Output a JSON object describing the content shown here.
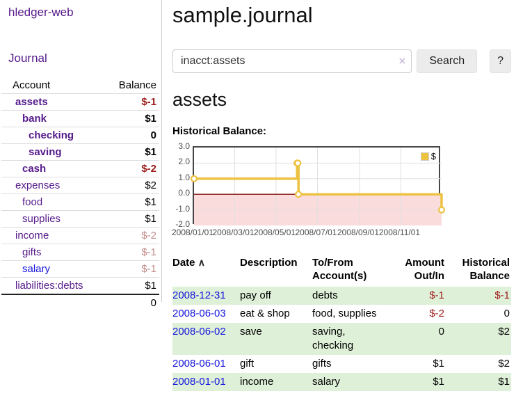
{
  "app": {
    "title": "hledger-web",
    "nav_journal": "Journal"
  },
  "sidebar": {
    "headers": {
      "account": "Account",
      "balance": "Balance"
    },
    "accounts": [
      {
        "name": "assets",
        "depth": 0,
        "bold": true,
        "balance": "$-1",
        "balance_style": "neg"
      },
      {
        "name": "bank",
        "depth": 1,
        "bold": true,
        "balance": "$1",
        "balance_style": ""
      },
      {
        "name": "checking",
        "depth": 2,
        "bold": true,
        "balance": "0",
        "balance_style": ""
      },
      {
        "name": "saving",
        "depth": 2,
        "bold": true,
        "balance": "$1",
        "balance_style": ""
      },
      {
        "name": "cash",
        "depth": 1,
        "bold": true,
        "balance": "$-2",
        "balance_style": "neg"
      },
      {
        "name": "expenses",
        "depth": 0,
        "bold": false,
        "balance": "$2",
        "balance_style": ""
      },
      {
        "name": "food",
        "depth": 1,
        "bold": false,
        "balance": "$1",
        "balance_style": ""
      },
      {
        "name": "supplies",
        "depth": 1,
        "bold": false,
        "balance": "$1",
        "balance_style": ""
      },
      {
        "name": "income",
        "depth": 0,
        "bold": false,
        "balance": "$-2",
        "balance_style": "negm"
      },
      {
        "name": "gifts",
        "depth": 1,
        "bold": false,
        "balance": "$-1",
        "balance_style": "negm"
      },
      {
        "name": "salary",
        "depth": 1,
        "bold": false,
        "balance": "$-1",
        "balance_style": "negm",
        "link_style": "blue"
      },
      {
        "name": "liabilities:debts",
        "depth": 0,
        "bold": false,
        "balance": "$1",
        "balance_style": ""
      }
    ],
    "total": "0"
  },
  "header": {
    "title": "sample.journal"
  },
  "search": {
    "value": "inacct:assets",
    "placeholder": "",
    "button": "Search",
    "help_button": "?"
  },
  "icons": {
    "clear_search": "×",
    "sort_ascending": "∧",
    "legend_swatch": "yellow-square"
  },
  "account_page": {
    "heading": "assets",
    "chart_title": "Historical Balance:"
  },
  "chart_data": {
    "type": "line",
    "title": "Historical Balance:",
    "step": true,
    "series": [
      {
        "name": "$",
        "color": "#EDC240",
        "points": [
          [
            "2008-01-01",
            1
          ],
          [
            "2008-06-01",
            2
          ],
          [
            "2008-06-02",
            2
          ],
          [
            "2008-06-03",
            0
          ],
          [
            "2008-12-31",
            -1
          ]
        ]
      }
    ],
    "x_start": "2008-01-01",
    "x_days": 365,
    "x_ticks": [
      "2008/01/01",
      "2008/03/01",
      "2008/05/01",
      "2008/07/01",
      "2008/09/01",
      "2008/11/01"
    ],
    "y_ticks": [
      "3.0",
      "2.0",
      "1.0",
      "0.0",
      "-1.0",
      "-2.0"
    ],
    "ylim": [
      -2,
      3
    ],
    "grid": true,
    "legend_position": "top-right",
    "negative_region_color": "#fbdcdc",
    "zero_line_color": "#8b1616",
    "grid_color": "#e0e0e0"
  },
  "register": {
    "headers": {
      "date": "Date",
      "description": "Description",
      "accounts": "To/From Account(s)",
      "amount": "Amount Out/In",
      "balance": "Historical Balance"
    },
    "rows": [
      {
        "date": "2008-12-31",
        "description": "pay off",
        "accounts": "debts",
        "amount": "$-1",
        "amount_style": "neg",
        "balance": "$-1",
        "balance_style": "neg"
      },
      {
        "date": "2008-06-03",
        "description": "eat & shop",
        "accounts": "food, supplies",
        "amount": "$-2",
        "amount_style": "neg",
        "balance": "0",
        "balance_style": ""
      },
      {
        "date": "2008-06-02",
        "description": "save",
        "accounts": "saving, checking",
        "amount": "0",
        "amount_style": "",
        "balance": "$2",
        "balance_style": ""
      },
      {
        "date": "2008-06-01",
        "description": "gift",
        "accounts": "gifts",
        "amount": "$1",
        "amount_style": "",
        "balance": "$2",
        "balance_style": ""
      },
      {
        "date": "2008-01-01",
        "description": "income",
        "accounts": "salary",
        "amount": "$1",
        "amount_style": "",
        "balance": "$1",
        "balance_style": ""
      }
    ]
  },
  "colors": {
    "link_purple": "#551A8B",
    "link_blue": "#1414dd",
    "negative_red": "#9d1b1b",
    "negative_muted": "#c28989",
    "row_stripe_green": "#dff0d8",
    "series_yellow": "#EDC240"
  }
}
